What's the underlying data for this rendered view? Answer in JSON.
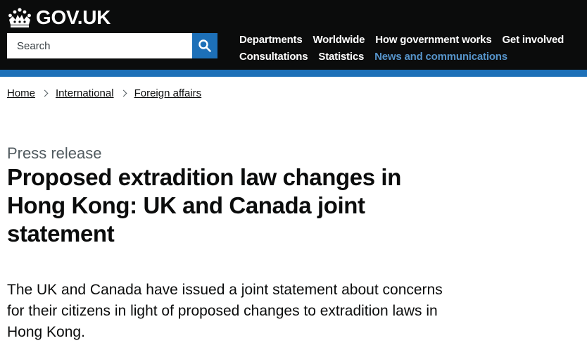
{
  "header": {
    "logo_text": "GOV.UK",
    "logo_icon": "crown-icon",
    "background_color": "#0b0c0c",
    "stripe_color": "#1d70b8"
  },
  "search": {
    "placeholder": "Search",
    "button_icon": "search-icon"
  },
  "nav": {
    "items": [
      {
        "label": "Departments"
      },
      {
        "label": "Worldwide"
      },
      {
        "label": "How government works"
      },
      {
        "label": "Get involved"
      },
      {
        "label": "Consultations"
      },
      {
        "label": "Statistics"
      },
      {
        "label": "News and communications",
        "active": true
      }
    ],
    "active_color": "#5694ca"
  },
  "breadcrumbs": [
    {
      "label": "Home"
    },
    {
      "label": "International"
    },
    {
      "label": "Foreign affairs"
    }
  ],
  "page": {
    "caption": "Press release",
    "title": "Proposed extradition law changes in Hong Kong: UK and Canada joint statement",
    "lead": "The UK and Canada have issued a joint statement about concerns for their citizens in light of proposed changes to extradition laws in Hong Kong."
  }
}
